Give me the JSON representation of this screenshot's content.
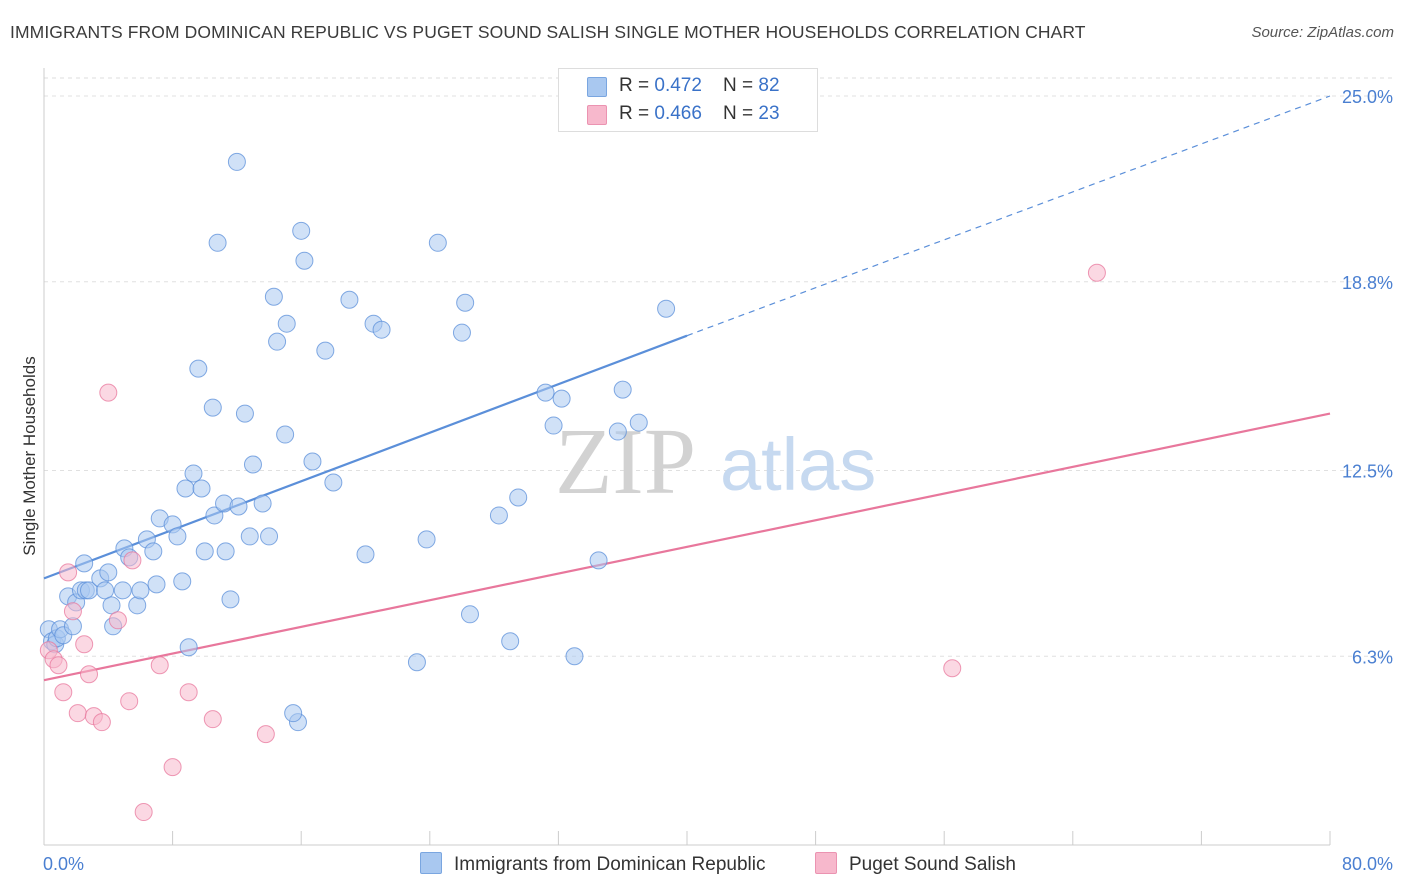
{
  "title": "IMMIGRANTS FROM DOMINICAN REPUBLIC VS PUGET SOUND SALISH SINGLE MOTHER HOUSEHOLDS CORRELATION CHART",
  "source": "Source: ZipAtlas.com",
  "watermark": {
    "zip": "ZIP",
    "atlas": "atlas"
  },
  "legend": {
    "rows": [
      {
        "r_label": "R = ",
        "r_value": "0.472",
        "n_label": "N = ",
        "n_value": "82",
        "color": "#a9c8f0"
      },
      {
        "r_label": "R = ",
        "r_value": "0.466",
        "n_label": "N = ",
        "n_value": "23",
        "color": "#f7b8cc"
      }
    ]
  },
  "bottom_legend": [
    {
      "label": "Immigrants from Dominican Republic",
      "color": "#a9c8f0"
    },
    {
      "label": "Puget Sound Salish",
      "color": "#f7b8cc"
    }
  ],
  "chart_data": {
    "type": "scatter",
    "ylabel": "Single Mother Households",
    "xlim": [
      0,
      80
    ],
    "ylim": [
      0,
      25
    ],
    "x_tick_labels": [
      "0.0%",
      "80.0%"
    ],
    "y_ticks": [
      6.3,
      12.5,
      18.8,
      25.0
    ],
    "y_tick_labels": [
      "6.3%",
      "12.5%",
      "18.8%",
      "25.0%"
    ],
    "grid": true,
    "series": [
      {
        "name": "Immigrants from Dominican Republic",
        "color": "#5b8fd9",
        "fill": "#a9c8f0",
        "trend": {
          "x": [
            0,
            40
          ],
          "y": [
            8.9,
            17.0
          ],
          "dashed_to": [
            80,
            25.0
          ]
        },
        "points": [
          [
            0.3,
            7.2
          ],
          [
            0.5,
            6.8
          ],
          [
            0.7,
            6.7
          ],
          [
            0.8,
            6.9
          ],
          [
            1.0,
            7.2
          ],
          [
            1.2,
            7.0
          ],
          [
            1.5,
            8.3
          ],
          [
            1.8,
            7.3
          ],
          [
            2.0,
            8.1
          ],
          [
            2.3,
            8.5
          ],
          [
            2.5,
            9.4
          ],
          [
            2.6,
            8.5
          ],
          [
            2.8,
            8.5
          ],
          [
            3.5,
            8.9
          ],
          [
            3.8,
            8.5
          ],
          [
            4.0,
            9.1
          ],
          [
            4.2,
            8.0
          ],
          [
            4.3,
            7.3
          ],
          [
            4.9,
            8.5
          ],
          [
            5.0,
            9.9
          ],
          [
            5.3,
            9.6
          ],
          [
            5.8,
            8.0
          ],
          [
            6.0,
            8.5
          ],
          [
            6.4,
            10.2
          ],
          [
            6.8,
            9.8
          ],
          [
            7.0,
            8.7
          ],
          [
            7.2,
            10.9
          ],
          [
            8.0,
            10.7
          ],
          [
            8.3,
            10.3
          ],
          [
            8.6,
            8.8
          ],
          [
            8.8,
            11.9
          ],
          [
            9.0,
            6.6
          ],
          [
            9.3,
            12.4
          ],
          [
            9.6,
            15.9
          ],
          [
            9.8,
            11.9
          ],
          [
            10.0,
            9.8
          ],
          [
            10.5,
            14.6
          ],
          [
            10.6,
            11.0
          ],
          [
            10.8,
            20.1
          ],
          [
            11.2,
            11.4
          ],
          [
            11.3,
            9.8
          ],
          [
            11.6,
            8.2
          ],
          [
            12.0,
            22.8
          ],
          [
            12.1,
            11.3
          ],
          [
            12.5,
            14.4
          ],
          [
            12.8,
            10.3
          ],
          [
            13.0,
            12.7
          ],
          [
            13.6,
            11.4
          ],
          [
            14.0,
            10.3
          ],
          [
            14.3,
            18.3
          ],
          [
            14.5,
            16.8
          ],
          [
            15.0,
            13.7
          ],
          [
            15.1,
            17.4
          ],
          [
            15.8,
            4.1
          ],
          [
            16.0,
            20.5
          ],
          [
            16.2,
            19.5
          ],
          [
            16.7,
            12.8
          ],
          [
            17.5,
            16.5
          ],
          [
            18.0,
            12.1
          ],
          [
            19.0,
            18.2
          ],
          [
            20.0,
            9.7
          ],
          [
            20.5,
            17.4
          ],
          [
            21.0,
            17.2
          ],
          [
            23.2,
            6.1
          ],
          [
            23.8,
            10.2
          ],
          [
            24.5,
            20.1
          ],
          [
            26.0,
            17.1
          ],
          [
            26.2,
            18.1
          ],
          [
            26.5,
            7.7
          ],
          [
            28.3,
            11.0
          ],
          [
            29.0,
            6.8
          ],
          [
            29.5,
            11.6
          ],
          [
            31.2,
            15.1
          ],
          [
            31.7,
            14.0
          ],
          [
            32.2,
            14.9
          ],
          [
            33.0,
            6.3
          ],
          [
            34.5,
            9.5
          ],
          [
            35.7,
            13.8
          ],
          [
            36.0,
            15.2
          ],
          [
            37.0,
            14.1
          ],
          [
            38.7,
            17.9
          ],
          [
            15.5,
            4.4
          ]
        ]
      },
      {
        "name": "Puget Sound Salish",
        "color": "#e8779c",
        "fill": "#f7b8cc",
        "trend": {
          "x": [
            0,
            80
          ],
          "y": [
            5.5,
            14.4
          ]
        },
        "points": [
          [
            0.3,
            6.5
          ],
          [
            0.6,
            6.2
          ],
          [
            0.9,
            6.0
          ],
          [
            1.2,
            5.1
          ],
          [
            1.5,
            9.1
          ],
          [
            1.8,
            7.8
          ],
          [
            2.1,
            4.4
          ],
          [
            2.5,
            6.7
          ],
          [
            2.8,
            5.7
          ],
          [
            3.1,
            4.3
          ],
          [
            3.6,
            4.1
          ],
          [
            4.0,
            15.1
          ],
          [
            4.6,
            7.5
          ],
          [
            5.3,
            4.8
          ],
          [
            5.5,
            9.5
          ],
          [
            6.2,
            1.1
          ],
          [
            7.2,
            6.0
          ],
          [
            8.0,
            2.6
          ],
          [
            9.0,
            5.1
          ],
          [
            10.5,
            4.2
          ],
          [
            13.8,
            3.7
          ],
          [
            56.5,
            5.9
          ],
          [
            65.5,
            19.1
          ]
        ]
      }
    ]
  }
}
